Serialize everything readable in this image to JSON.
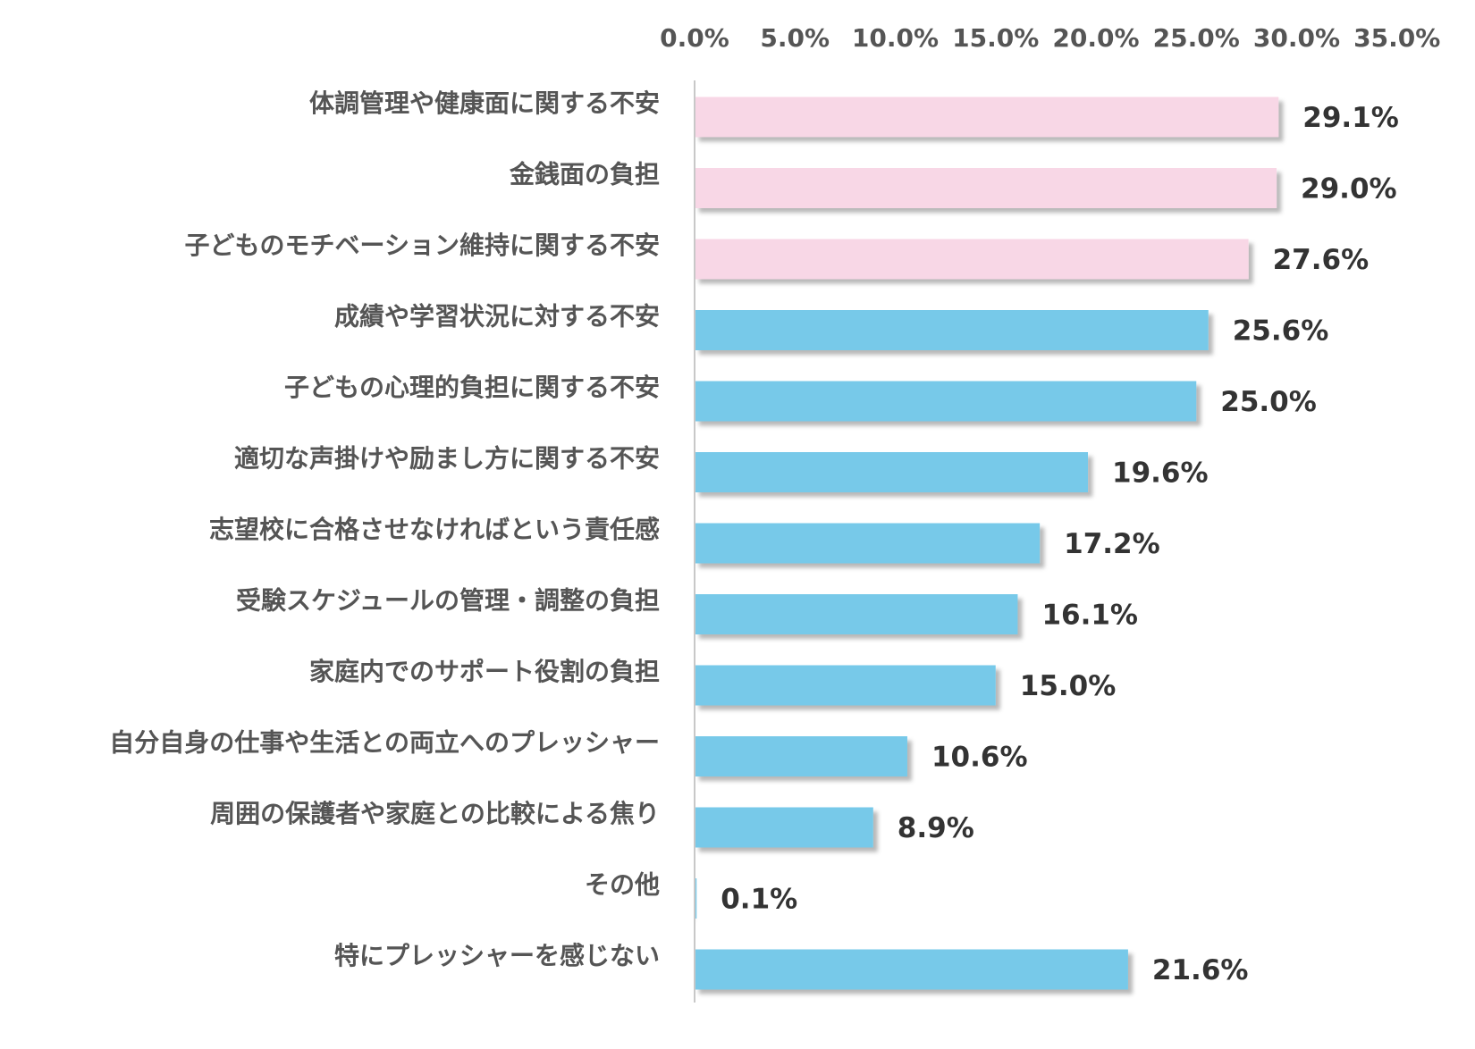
{
  "chart_data": {
    "type": "bar",
    "orientation": "horizontal",
    "categories": [
      "体調管理や健康面に関する不安",
      "金銭面の負担",
      "子どものモチベーション維持に関する不安",
      "成績や学習状況に対する不安",
      "子どもの心理的負担に関する不安",
      "適切な声掛けや励まし方に関する不安",
      "志望校に合格させなければという責任感",
      "受験スケジュールの管理・調整の負担",
      "家庭内でのサポート役割の負担",
      "自分自身の仕事や生活との両立へのプレッシャー",
      "周囲の保護者や家庭との比較による焦り",
      "その他",
      "特にプレッシャーを感じない"
    ],
    "values": [
      29.1,
      29.0,
      27.6,
      25.6,
      25.0,
      19.6,
      17.2,
      16.1,
      15.0,
      10.6,
      8.9,
      0.1,
      21.6
    ],
    "value_labels": [
      "29.1%",
      "29.0%",
      "27.6%",
      "25.6%",
      "25.0%",
      "19.6%",
      "17.2%",
      "16.1%",
      "15.0%",
      "10.6%",
      "8.9%",
      "0.1%",
      "21.6%"
    ],
    "highlight": [
      true,
      true,
      true,
      false,
      false,
      false,
      false,
      false,
      false,
      false,
      false,
      false,
      false
    ],
    "xlim": [
      0,
      35
    ],
    "x_ticks": [
      0,
      5,
      10,
      15,
      20,
      25,
      30,
      35
    ],
    "x_tick_labels": [
      "0.0%",
      "5.0%",
      "10.0%",
      "15.0%",
      "20.0%",
      "25.0%",
      "30.0%",
      "35.0%"
    ],
    "axis_position": "top",
    "grid": false,
    "title": "",
    "xlabel": "",
    "ylabel": "",
    "colors": {
      "highlight_bar": "#f8d7e6",
      "normal_bar": "#77c9e9",
      "axis_line": "#c8c8c8"
    }
  }
}
